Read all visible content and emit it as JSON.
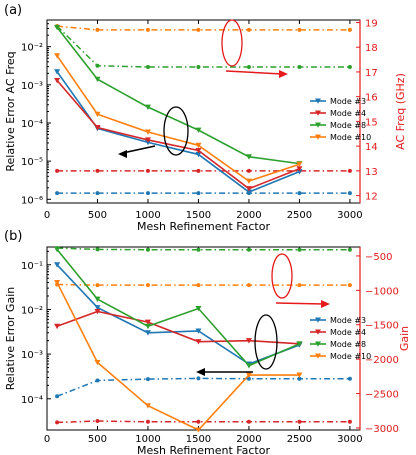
{
  "chart_data": [
    {
      "type": "line",
      "panel_label": "(a)",
      "xlabel": "Mesh Refinement Factor",
      "ylabel": "Relative Error AC Freq",
      "y2label": "AC Freq (GHz)",
      "xlim": [
        0,
        3100
      ],
      "xticks": [
        "0",
        "500",
        "1000",
        "1500",
        "2000",
        "2500",
        "3000"
      ],
      "yscale": "log",
      "ylim": [
        8e-07,
        0.05
      ],
      "yticks": [
        "10⁻⁶",
        "10⁻⁵",
        "10⁻⁴",
        "10⁻³",
        "10⁻²"
      ],
      "y2lim": [
        11.7,
        19.1
      ],
      "y2ticks": [
        "12",
        "13",
        "14",
        "15",
        "16",
        "17",
        "18",
        "19"
      ],
      "legend_position": "right",
      "series": [
        {
          "name": "Mode #3",
          "color": "#1f77b4",
          "x": [
            100,
            500,
            1000,
            1500,
            2000,
            2500
          ],
          "y": [
            0.0022,
            7.2e-05,
            3.1e-05,
            1.5e-05,
            1.55e-06,
            5.3e-06
          ],
          "x2": [
            100,
            500,
            1000,
            1500,
            2000,
            2500,
            3000
          ],
          "y2": [
            12.1,
            12.1,
            12.1,
            12.1,
            12.1,
            12.1,
            12.1
          ]
        },
        {
          "name": "Mode #4",
          "color": "#d62728",
          "x": [
            100,
            500,
            1000,
            1500,
            2000,
            2500
          ],
          "y": [
            0.0013,
            7.6e-05,
            3.6e-05,
            1.9e-05,
            1.9e-06,
            6.3e-06
          ],
          "x2": [
            100,
            500,
            1000,
            1500,
            2000,
            2500,
            3000
          ],
          "y2": [
            13.0,
            13.0,
            13.0,
            13.0,
            13.0,
            13.0,
            13.0
          ]
        },
        {
          "name": "Mode #8",
          "color": "#2ca02c",
          "x": [
            100,
            500,
            1000,
            1500,
            2000,
            2500
          ],
          "y": [
            0.032,
            0.0014,
            0.00026,
            6.5e-05,
            1.3e-05,
            8.6e-06
          ],
          "x2": [
            100,
            500,
            1000,
            1500,
            2000,
            2500,
            3000
          ],
          "y2": [
            18.85,
            17.25,
            17.2,
            17.2,
            17.2,
            17.2,
            17.2
          ]
        },
        {
          "name": "Mode #10",
          "color": "#ff7f0e",
          "x": [
            100,
            500,
            1000,
            1500,
            2000,
            2500
          ],
          "y": [
            0.0058,
            0.00017,
            5.8e-05,
            2.6e-05,
            3e-06,
            8.3e-06
          ],
          "x2": [
            100,
            500,
            1000,
            1500,
            2000,
            2500,
            3000
          ],
          "y2": [
            18.85,
            18.7,
            18.7,
            18.7,
            18.7,
            18.7,
            18.7
          ]
        }
      ]
    },
    {
      "type": "line",
      "panel_label": "(b)",
      "xlabel": "Mesh Refinement Factor",
      "ylabel": "Relative Error Gain",
      "y2label": "Gain",
      "xlim": [
        0,
        3100
      ],
      "xticks": [
        "0",
        "500",
        "1000",
        "1500",
        "2000",
        "2500",
        "3000"
      ],
      "yscale": "log",
      "ylim": [
        2e-05,
        0.25
      ],
      "yticks": [
        "10⁻⁴",
        "10⁻³",
        "10⁻²",
        "10⁻¹"
      ],
      "y2lim": [
        -3030,
        -370
      ],
      "y2ticks": [
        "−500",
        "−1000",
        "−1500",
        "−2000",
        "−2500",
        "−3000"
      ],
      "legend_position": "right",
      "series": [
        {
          "name": "Mode #3",
          "color": "#1f77b4",
          "x": [
            100,
            500,
            1000,
            1500,
            2000,
            2500
          ],
          "y": [
            0.1,
            0.011,
            0.003,
            0.0033,
            0.0006,
            0.0016
          ],
          "x2": [
            100,
            500,
            1000,
            1500,
            2000,
            2500,
            3000
          ],
          "y2": [
            -2540,
            -2310,
            -2290,
            -2280,
            -2285,
            -2285,
            -2285
          ]
        },
        {
          "name": "Mode #4",
          "color": "#d62728",
          "x": [
            100,
            500,
            1000,
            1500,
            2000,
            2500
          ],
          "y": [
            0.0042,
            0.009,
            0.0052,
            0.0019,
            0.002,
            0.0017
          ],
          "x2": [
            100,
            500,
            1000,
            1500,
            2000,
            2500,
            3000
          ],
          "y2": [
            -2920,
            -2900,
            -2910,
            -2910,
            -2910,
            -2910,
            -2910
          ]
        },
        {
          "name": "Mode #8",
          "color": "#2ca02c",
          "x": [
            100,
            500,
            1000,
            1500,
            2000,
            2500
          ],
          "y": [
            0.22,
            0.017,
            0.0042,
            0.0105,
            0.00055,
            0.0017
          ],
          "x2": [
            100,
            500,
            1000,
            1500,
            2000,
            2500,
            3000
          ],
          "y2": [
            -385,
            -405,
            -410,
            -410,
            -410,
            -410,
            -410
          ]
        },
        {
          "name": "Mode #10",
          "color": "#ff7f0e",
          "x": [
            100,
            500,
            1000,
            1500,
            2000,
            2500
          ],
          "y": [
            0.04,
            0.00065,
            7e-05,
            2e-05,
            0.00034,
            0.00034
          ],
          "x2": [
            100,
            500,
            1000,
            1500,
            2000,
            2500,
            3000
          ],
          "y2": [
            -915,
            -925,
            -925,
            -925,
            -925,
            -925,
            -925
          ]
        }
      ]
    }
  ],
  "annotation_color": "#e41a1c"
}
